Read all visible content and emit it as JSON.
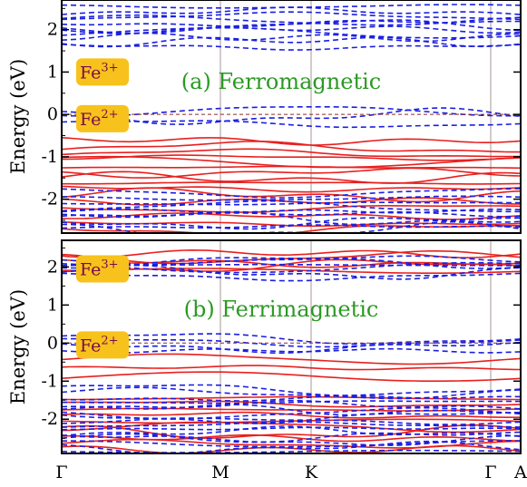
{
  "chart_data": [
    {
      "type": "line",
      "title": "(a) Ferromagnetic",
      "ylabel": "Energy (eV)",
      "xlabel": "",
      "x_ticks": [
        "Γ",
        "M",
        "K",
        "Γ",
        "A"
      ],
      "ylim": [
        -2.8,
        2.7
      ],
      "y_ticks": [
        -2,
        -1,
        0,
        1,
        2
      ],
      "fermi_level": 0,
      "badges": [
        {
          "ion": "Fe",
          "charge": "3+",
          "energy": 1.0
        },
        {
          "ion": "Fe",
          "charge": "2+",
          "energy": -0.1
        }
      ],
      "series": [
        {
          "name": "",
          "style": "solid",
          "color": "#e8201e",
          "bands": [
            -0.62,
            -0.78,
            -0.92,
            -1.02,
            -1.12,
            -1.25,
            -1.38,
            -1.5,
            -1.62,
            -1.75,
            -1.9,
            -2.05,
            -2.22,
            -2.4,
            -2.58,
            -2.72
          ]
        },
        {
          "name": "",
          "style": "dashed",
          "color": "#1a1ee0",
          "bands": [
            2.55,
            2.42,
            2.32,
            2.22,
            2.15,
            2.08,
            2.0,
            1.92,
            1.82,
            1.72,
            1.6,
            0.08,
            -0.05,
            -0.22,
            -1.85,
            -1.98,
            -2.1,
            -2.18,
            -2.28,
            -2.36,
            -2.45,
            -2.55,
            -2.65,
            -2.74
          ]
        }
      ]
    },
    {
      "type": "line",
      "title": "(b) Ferrimagnetic",
      "ylabel": "Energy (eV)",
      "xlabel": "",
      "x_ticks": [
        "Γ",
        "M",
        "K",
        "Γ",
        "A"
      ],
      "ylim": [
        -2.9,
        2.7
      ],
      "y_ticks": [
        -2,
        -1,
        0,
        1,
        2
      ],
      "fermi_level": 0,
      "badges": [
        {
          "ion": "Fe",
          "charge": "3+",
          "energy": 1.95
        },
        {
          "ion": "Fe",
          "charge": "2+",
          "energy": -0.05
        }
      ],
      "series": [
        {
          "name": "",
          "style": "solid",
          "color": "#e8201e",
          "bands": [
            2.35,
            2.25,
            2.1,
            2.02,
            1.9,
            -0.42,
            -0.65,
            -0.88,
            -1.45,
            -1.6,
            -1.75,
            -1.9,
            -2.05,
            -2.2,
            -2.35,
            -2.5,
            -2.65,
            -2.8
          ]
        },
        {
          "name": "",
          "style": "dashed",
          "color": "#1a1ee0",
          "bands": [
            2.18,
            2.12,
            2.05,
            1.98,
            1.85,
            1.75,
            0.12,
            0.02,
            -0.1,
            -0.2,
            -1.22,
            -1.32,
            -1.45,
            -1.55,
            -1.65,
            -1.75,
            -1.85,
            -1.95,
            -2.05,
            -2.15,
            -2.25,
            -2.35,
            -2.45,
            -2.55,
            -2.65,
            -2.75,
            -2.85
          ]
        }
      ]
    }
  ]
}
